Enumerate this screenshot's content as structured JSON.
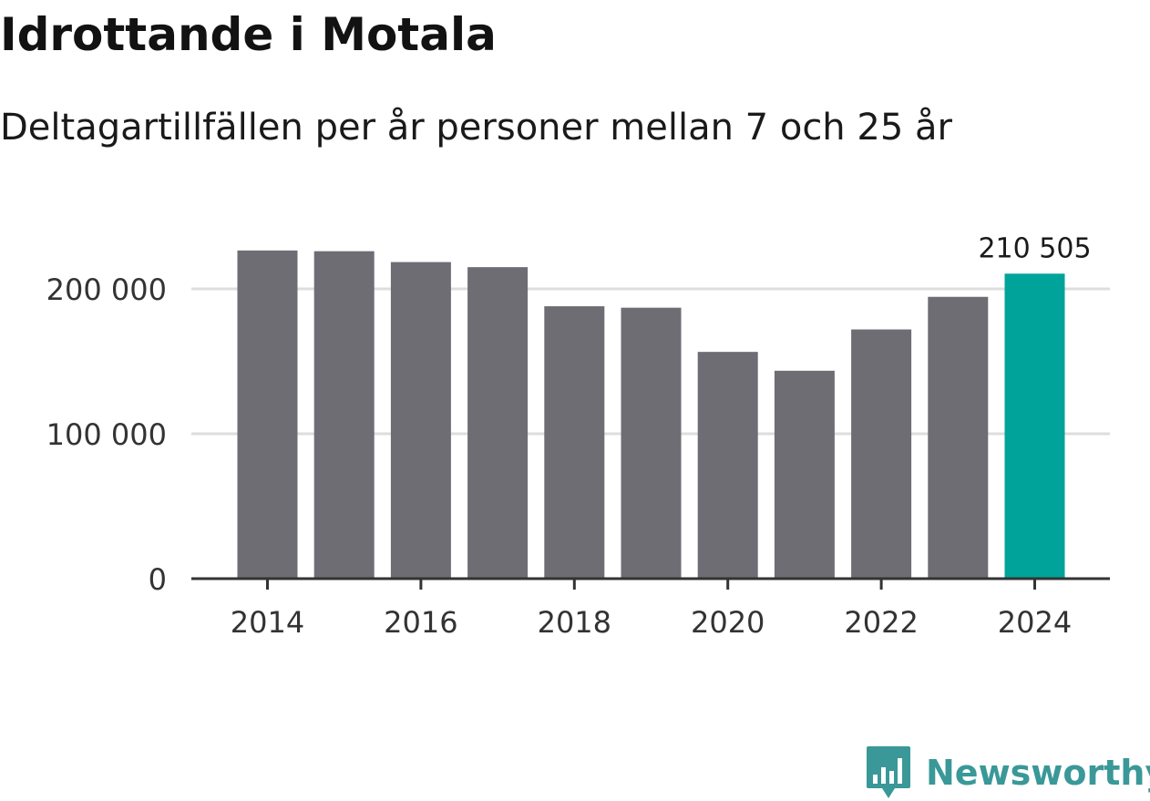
{
  "title": "Idrottande i Motala",
  "subtitle": "Deltagartillfällen per år personer mellan 7 och 25 år",
  "logo": {
    "text": "Newsworthy",
    "icon": "bar-chart-speech-bubble-icon",
    "color": "#3a9898"
  },
  "chart_data": {
    "type": "bar",
    "title": "Idrottande i Motala",
    "subtitle": "Deltagartillfällen per år personer mellan 7 och 25 år",
    "xlabel": "",
    "ylabel": "",
    "categories": [
      "2014",
      "2015",
      "2016",
      "2017",
      "2018",
      "2019",
      "2020",
      "2021",
      "2022",
      "2023",
      "2024"
    ],
    "values": [
      226500,
      226000,
      218500,
      215000,
      188000,
      187000,
      156500,
      143500,
      172000,
      194500,
      210505
    ],
    "highlight_index": 10,
    "highlight_label": "210 505",
    "bar_color": "#6e6d74",
    "highlight_color": "#00a39a",
    "gridline_color": "#dddddd",
    "axis_color": "#333333",
    "ylim": [
      0,
      235000
    ],
    "y_ticks": [
      0,
      100000,
      200000
    ],
    "y_tick_labels": [
      "0",
      "100 000",
      "200 000"
    ],
    "x_ticks": [
      "2014",
      "2016",
      "2018",
      "2020",
      "2022",
      "2024"
    ],
    "grid": true
  }
}
